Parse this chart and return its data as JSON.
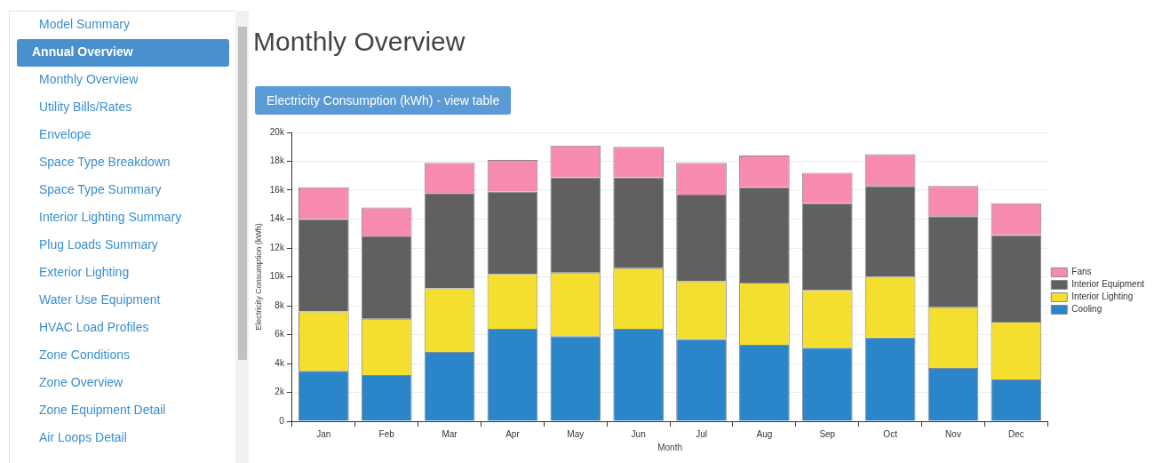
{
  "chart_data": {
    "type": "bar",
    "title": "Monthly Overview",
    "subtitle": "Electricity Consumption (kWh) - view table",
    "xlabel": "Month",
    "ylabel": "Electricity Consumption (kWh)",
    "categories": [
      "Jan",
      "Feb",
      "Mar",
      "Apr",
      "May",
      "Jun",
      "Jul",
      "Aug",
      "Sep",
      "Oct",
      "Nov",
      "Dec"
    ],
    "stacked": true,
    "series": [
      {
        "name": "Cooling",
        "color": "#2a86c8",
        "values": [
          3500,
          3200,
          4800,
          6400,
          5900,
          6400,
          5700,
          5300,
          5100,
          5800,
          3700,
          2900
        ]
      },
      {
        "name": "Interior Lighting",
        "color": "#f5df2e",
        "values": [
          4100,
          3900,
          4400,
          3800,
          4400,
          4200,
          4000,
          4300,
          4000,
          4200,
          4200,
          4000
        ]
      },
      {
        "name": "Interior Equipment",
        "color": "#606060",
        "values": [
          6400,
          5700,
          6600,
          5700,
          6600,
          6300,
          6000,
          6600,
          6000,
          6300,
          6300,
          6000
        ]
      },
      {
        "name": "Fans",
        "color": "#f78ab0",
        "values": [
          2200,
          2000,
          2100,
          2200,
          2200,
          2100,
          2200,
          2200,
          2100,
          2200,
          2100,
          2200
        ]
      }
    ],
    "ylim": [
      0,
      20000
    ],
    "yticks": [
      0,
      {
        "value": 2000,
        "label": "2k"
      },
      {
        "value": 4000,
        "label": "4k"
      },
      {
        "value": 6000,
        "label": "6k"
      },
      {
        "value": 8000,
        "label": "8k"
      },
      {
        "value": 10000,
        "label": "10k"
      },
      {
        "value": 12000,
        "label": "12k"
      },
      {
        "value": 14000,
        "label": "14k"
      },
      {
        "value": 16000,
        "label": "16k"
      },
      {
        "value": 18000,
        "label": "18k"
      },
      {
        "value": 20000,
        "label": "20k"
      }
    ],
    "grid": "y",
    "legend": "right",
    "annotations": [
      "Model Summary",
      "Annual Overview",
      "Monthly Overview",
      "Utility Bills/Rates",
      "Envelope",
      "Space Type Breakdown",
      "Space Type Summary",
      "Interior Lighting Summary",
      "Plug Loads Summary",
      "Exterior Lighting",
      "Water Use Equipment",
      "HVAC Load Profiles",
      "Zone Conditions",
      "Zone Overview",
      "Zone Equipment Detail",
      "Air Loops Detail"
    ]
  }
}
